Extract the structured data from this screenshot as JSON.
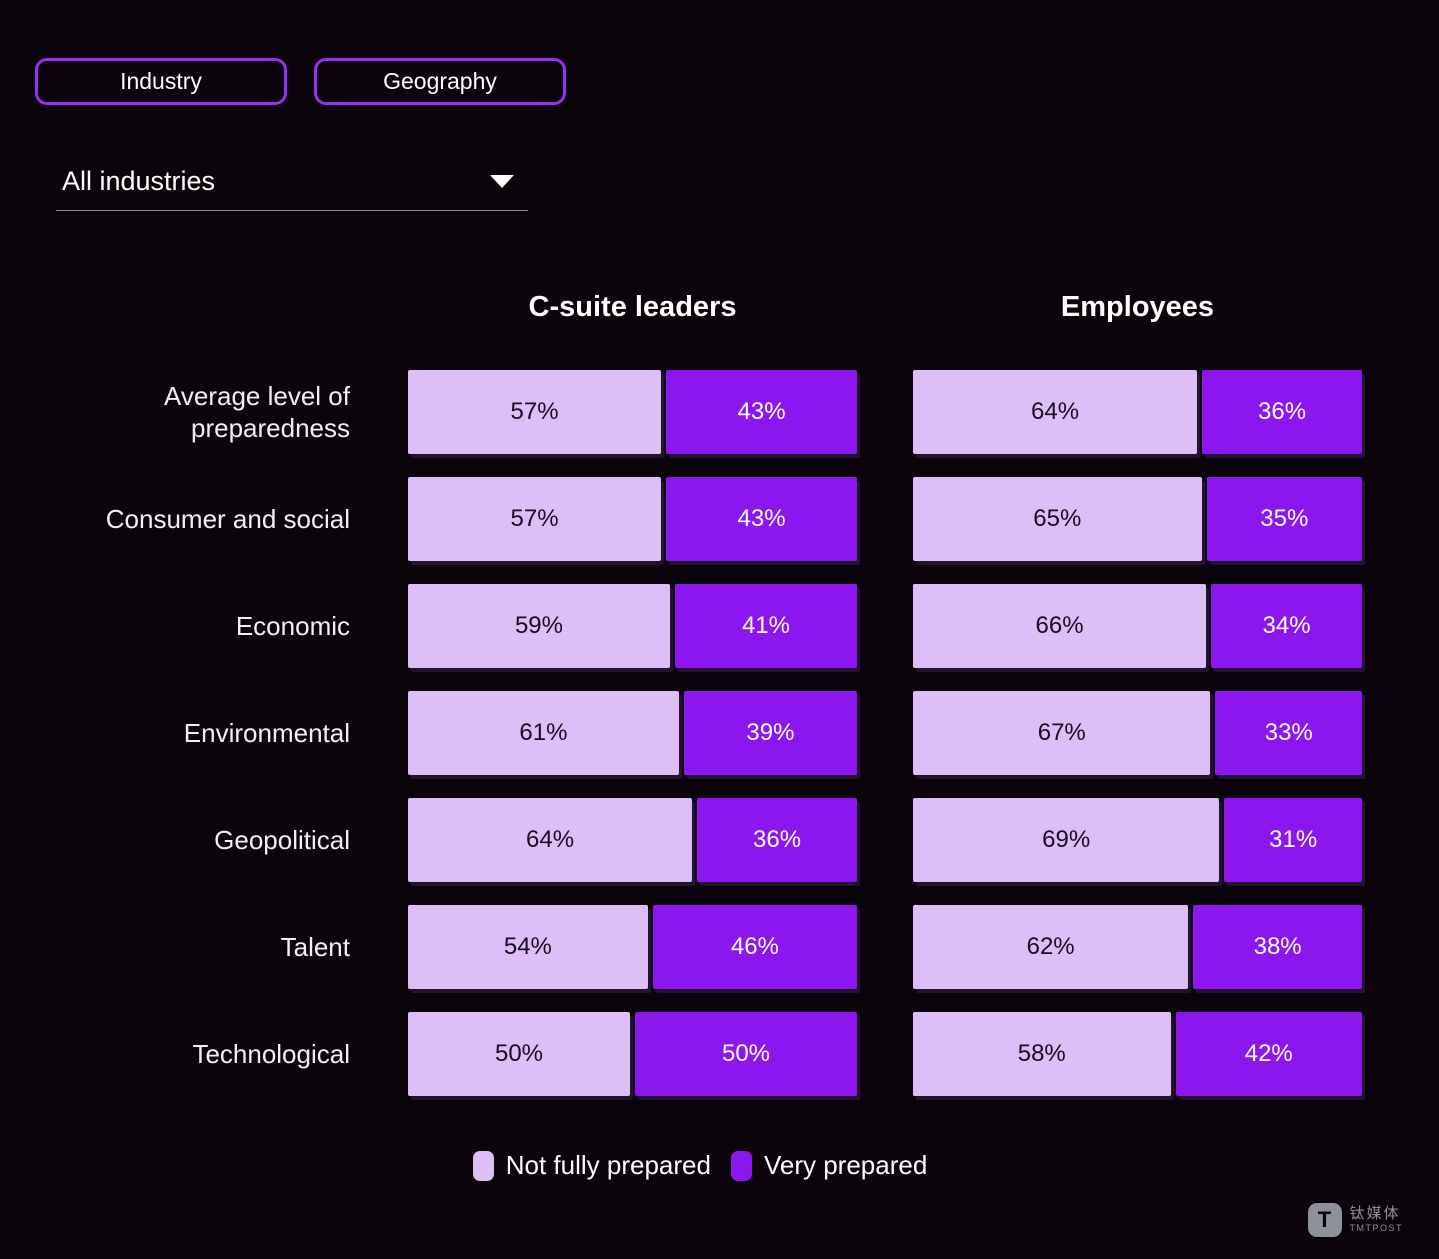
{
  "colors": {
    "background": "#0b040a",
    "not_fully_prepared": "#ddbef6",
    "very_prepared": "#8c17ee",
    "tab_border": "#9b2ff0"
  },
  "tabs": [
    {
      "label": "Industry"
    },
    {
      "label": "Geography"
    }
  ],
  "dropdown": {
    "value": "All industries"
  },
  "chart_data": {
    "type": "bar",
    "subtype": "horizontal-stacked-100pct",
    "title": "",
    "unit": "%",
    "groups": [
      "C-suite leaders",
      "Employees"
    ],
    "categories": [
      "Average level of preparedness",
      "Consumer and social",
      "Economic",
      "Environmental",
      "Geopolitical",
      "Talent",
      "Technological"
    ],
    "series": [
      {
        "name": "Not fully prepared",
        "group": "C-suite leaders",
        "values": [
          57,
          57,
          59,
          61,
          64,
          54,
          50
        ]
      },
      {
        "name": "Very prepared",
        "group": "C-suite leaders",
        "values": [
          43,
          43,
          41,
          39,
          36,
          46,
          50
        ]
      },
      {
        "name": "Not fully prepared",
        "group": "Employees",
        "values": [
          64,
          65,
          66,
          67,
          69,
          62,
          58
        ]
      },
      {
        "name": "Very prepared",
        "group": "Employees",
        "values": [
          36,
          35,
          34,
          33,
          31,
          38,
          42
        ]
      }
    ],
    "legend_position": "bottom",
    "grid": false
  },
  "legend": {
    "items": [
      {
        "label": "Not fully prepared",
        "color": "#ddbef6"
      },
      {
        "label": "Very prepared",
        "color": "#8c17ee"
      }
    ]
  },
  "watermark": {
    "icon_letter": "T",
    "cn": "钛媒体",
    "en": "TMTPOST"
  }
}
